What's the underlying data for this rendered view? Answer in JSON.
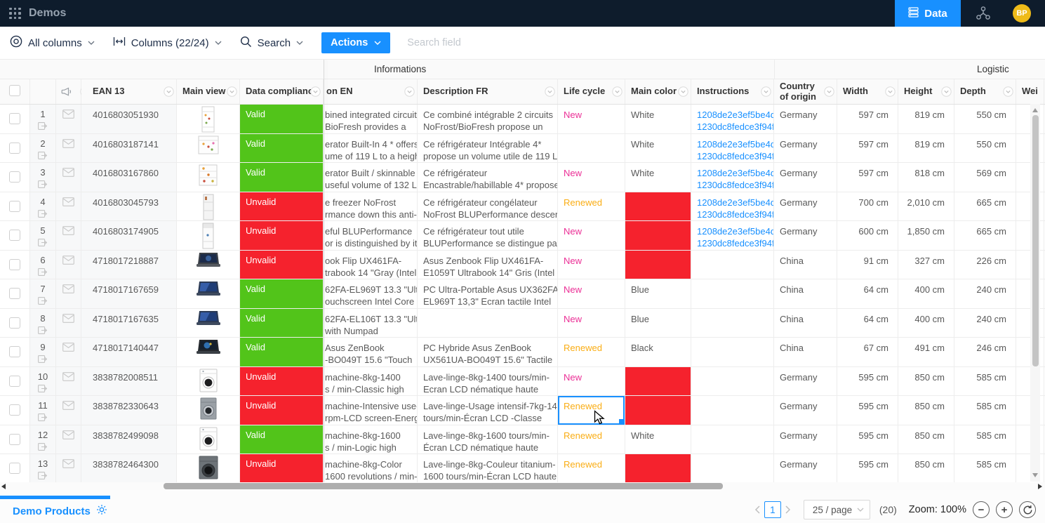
{
  "navbar": {
    "title": "Demos",
    "data_button": "Data",
    "avatar_initials": "BP"
  },
  "toolbar": {
    "all_columns": "All columns",
    "columns": "Columns (22/24)",
    "search": "Search",
    "actions": "Actions",
    "search_placeholder": "Search field"
  },
  "grid": {
    "groups": {
      "informations": "Informations",
      "logistic": "Logistic"
    },
    "columns": {
      "ean": "EAN 13",
      "main_view": "Main view",
      "compliance": "Data compliance",
      "desc_en": "on EN",
      "desc_fr": "Description FR",
      "life_cycle": "Life cycle",
      "main_color": "Main color",
      "instructions": "Instructions",
      "country": "Country of origin",
      "width": "Width",
      "height": "Height",
      "depth": "Depth",
      "weight": "Wei"
    },
    "rows": [
      {
        "num": "1",
        "ean": "4016803051930",
        "image": "fridge-tall",
        "compliance": {
          "label": "Valid",
          "valid": true
        },
        "desc_en": [
          "bined integrated circuits 2",
          "BioFresh provides a"
        ],
        "desc_fr": [
          "Ce combiné intégrable 2 circuits",
          "NoFrost/BioFresh propose un"
        ],
        "life": "New",
        "selected": false,
        "color": {
          "text": "White",
          "invalid": false
        },
        "instructions": [
          "1208de2e3ef5be4da",
          "1230dc8fedce3f94f7"
        ],
        "country": "Germany",
        "width": "597 cm",
        "height": "819 cm",
        "depth": "550 cm"
      },
      {
        "num": "2",
        "ean": "4016803187141",
        "image": "fridge-under",
        "compliance": {
          "label": "Valid",
          "valid": true
        },
        "desc_en": [
          "erator Built-In 4 * offers a",
          "ume of 119 L to a height"
        ],
        "desc_fr": [
          "Ce réfrigérateur Intégrable 4*",
          "propose un volume utile de 119 L"
        ],
        "life": "",
        "selected": false,
        "color": {
          "text": "White",
          "invalid": false
        },
        "instructions": [
          "1208de2e3ef5be4da",
          "1230dc8fedce3f94f7"
        ],
        "country": "Germany",
        "width": "597 cm",
        "height": "819 cm",
        "depth": "550 cm"
      },
      {
        "num": "3",
        "ean": "4016803167860",
        "image": "fridge-open",
        "compliance": {
          "label": "Valid",
          "valid": true
        },
        "desc_en": [
          "erator Built / skinnable 4",
          "useful volume of 132 L to"
        ],
        "desc_fr": [
          "Ce réfrigérateur",
          "Encastrable/habillable 4* propose"
        ],
        "life": "New",
        "selected": false,
        "color": {
          "text": "White",
          "invalid": false
        },
        "instructions": [
          "1208de2e3ef5be4da",
          "1230dc8fedce3f94f7"
        ],
        "country": "Germany",
        "width": "597 cm",
        "height": "818 cm",
        "depth": "569 cm"
      },
      {
        "num": "4",
        "ean": "4016803045793",
        "image": "freezer",
        "compliance": {
          "label": "Unvalid",
          "valid": false
        },
        "desc_en": [
          "e freezer NoFrost",
          "rmance down this anti-"
        ],
        "desc_fr": [
          "Ce réfrigérateur congélateur",
          "NoFrost BLUPerformance descend"
        ],
        "life": "Renewed",
        "selected": false,
        "color": {
          "text": "",
          "invalid": true
        },
        "instructions": [
          "1208de2e3ef5be4da",
          "1230dc8fedce3f94f7"
        ],
        "country": "Germany",
        "width": "700 cm",
        "height": "2,010 cm",
        "depth": "665 cm"
      },
      {
        "num": "5",
        "ean": "4016803174905",
        "image": "fridge-blu",
        "compliance": {
          "label": "Unvalid",
          "valid": false
        },
        "desc_en": [
          "eful BLUPerformance",
          "or is distinguished by its"
        ],
        "desc_fr": [
          "Ce réfrigérateur tout utile",
          "BLUPerformance se distingue par"
        ],
        "life": "New",
        "selected": false,
        "color": {
          "text": "",
          "invalid": true
        },
        "instructions": [
          "1208de2e3ef5be4da",
          "1230dc8fedce3f94f7"
        ],
        "country": "Germany",
        "width": "600 cm",
        "height": "1,850 cm",
        "depth": "665 cm"
      },
      {
        "num": "6",
        "ean": "4718017218887",
        "image": "laptop-dark",
        "compliance": {
          "label": "Unvalid",
          "valid": false
        },
        "desc_en": [
          "ook Flip UX461FA-",
          "trabook 14 \"Gray (Intel"
        ],
        "desc_fr": [
          "Asus Zenbook Flip UX461FA-",
          "E1059T Ultrabook 14\" Gris (Intel"
        ],
        "life": "New",
        "selected": false,
        "color": {
          "text": "",
          "invalid": true
        },
        "instructions": [],
        "country": "China",
        "width": "91 cm",
        "height": "327 cm",
        "depth": "226 cm"
      },
      {
        "num": "7",
        "ean": "4718017167659",
        "image": "laptop-blue",
        "compliance": {
          "label": "Valid",
          "valid": true
        },
        "desc_en": [
          "62FA-EL969T 13.3 \"Ultra-",
          "ouchscreen Intel Core i5"
        ],
        "desc_fr": [
          "PC Ultra-Portable Asus UX362FA-",
          "EL969T 13,3\" Ecran tactile Intel"
        ],
        "life": "New",
        "selected": false,
        "color": {
          "text": "Blue",
          "invalid": false
        },
        "instructions": [],
        "country": "China",
        "width": "64 cm",
        "height": "400 cm",
        "depth": "240 cm"
      },
      {
        "num": "8",
        "ean": "4718017167635",
        "image": "laptop-blue",
        "compliance": {
          "label": "Valid",
          "valid": true
        },
        "desc_en": [
          "62FA-EL106T 13.3 \"Ultra-",
          "with Numpad"
        ],
        "desc_fr": [
          "",
          ""
        ],
        "life": "New",
        "selected": false,
        "color": {
          "text": "Blue",
          "invalid": false
        },
        "instructions": [],
        "country": "China",
        "width": "64 cm",
        "height": "400 cm",
        "depth": "240 cm"
      },
      {
        "num": "9",
        "ean": "4718017140447",
        "image": "laptop-black",
        "compliance": {
          "label": "Valid",
          "valid": true
        },
        "desc_en": [
          "Asus ZenBook",
          "-BO049T 15.6 \"Touch"
        ],
        "desc_fr": [
          "PC Hybride Asus ZenBook",
          "UX561UA-BO049T 15.6\" Tactile"
        ],
        "life": "Renewed",
        "selected": false,
        "color": {
          "text": "Black",
          "invalid": false
        },
        "instructions": [],
        "country": "China",
        "width": "67 cm",
        "height": "491 cm",
        "depth": "246 cm"
      },
      {
        "num": "10",
        "ean": "3838782008511",
        "image": "washer-white",
        "compliance": {
          "label": "Unvalid",
          "valid": false
        },
        "desc_en": [
          "machine-8kg-1400",
          "s / min-Classic high"
        ],
        "desc_fr": [
          "Lave-linge-8kg-1400 tours/min-",
          "Ecran LCD nématique haute"
        ],
        "life": "New",
        "selected": false,
        "color": {
          "text": "",
          "invalid": true
        },
        "instructions": [],
        "country": "Germany",
        "width": "595 cm",
        "height": "850 cm",
        "depth": "585 cm"
      },
      {
        "num": "11",
        "ean": "3838782330643",
        "image": "washer-gray",
        "compliance": {
          "label": "Unvalid",
          "valid": false
        },
        "desc_en": [
          "machine-Intensive use-",
          "rpm-LCD screen-Energy"
        ],
        "desc_fr": [
          "Lave-linge-Usage intensif-7kg-1400",
          "tours/min-Écran LCD -Classe"
        ],
        "life": "Renewed",
        "selected": true,
        "color": {
          "text": "",
          "invalid": true
        },
        "instructions": [],
        "country": "Germany",
        "width": "595 cm",
        "height": "850 cm",
        "depth": "585 cm"
      },
      {
        "num": "12",
        "ean": "3838782499098",
        "image": "washer-white",
        "compliance": {
          "label": "Valid",
          "valid": true
        },
        "desc_en": [
          "machine-8kg-1600",
          "s / min-Logic high"
        ],
        "desc_fr": [
          "Lave-linge-8kg-1600 tours/min-",
          "Écran LCD nématique haute"
        ],
        "life": "Renewed",
        "selected": false,
        "color": {
          "text": "White",
          "invalid": false
        },
        "instructions": [],
        "country": "Germany",
        "width": "595 cm",
        "height": "850 cm",
        "depth": "585 cm"
      },
      {
        "num": "13",
        "ean": "3838782464300",
        "image": "washer-dark",
        "compliance": {
          "label": "Unvalid",
          "valid": false
        },
        "desc_en": [
          "machine-8kg-Color",
          "1600 revolutions / min-"
        ],
        "desc_fr": [
          "Lave-linge-8kg-Couleur titanium-",
          "1600 tours/min-Écran LCD haute"
        ],
        "life": "Renewed",
        "selected": false,
        "color": {
          "text": "",
          "invalid": true
        },
        "instructions": [],
        "country": "Germany",
        "width": "595 cm",
        "height": "850 cm",
        "depth": "585 cm"
      }
    ]
  },
  "footer": {
    "tab": "Demo Products",
    "page": "1",
    "page_size": "25 / page",
    "total": "(20)",
    "zoom": "Zoom: 100%"
  },
  "colors": {
    "accent": "#1890ff",
    "valid": "#52c41a",
    "invalid": "#f5222d",
    "new": "#eb2f96",
    "renewed": "#faad14"
  }
}
